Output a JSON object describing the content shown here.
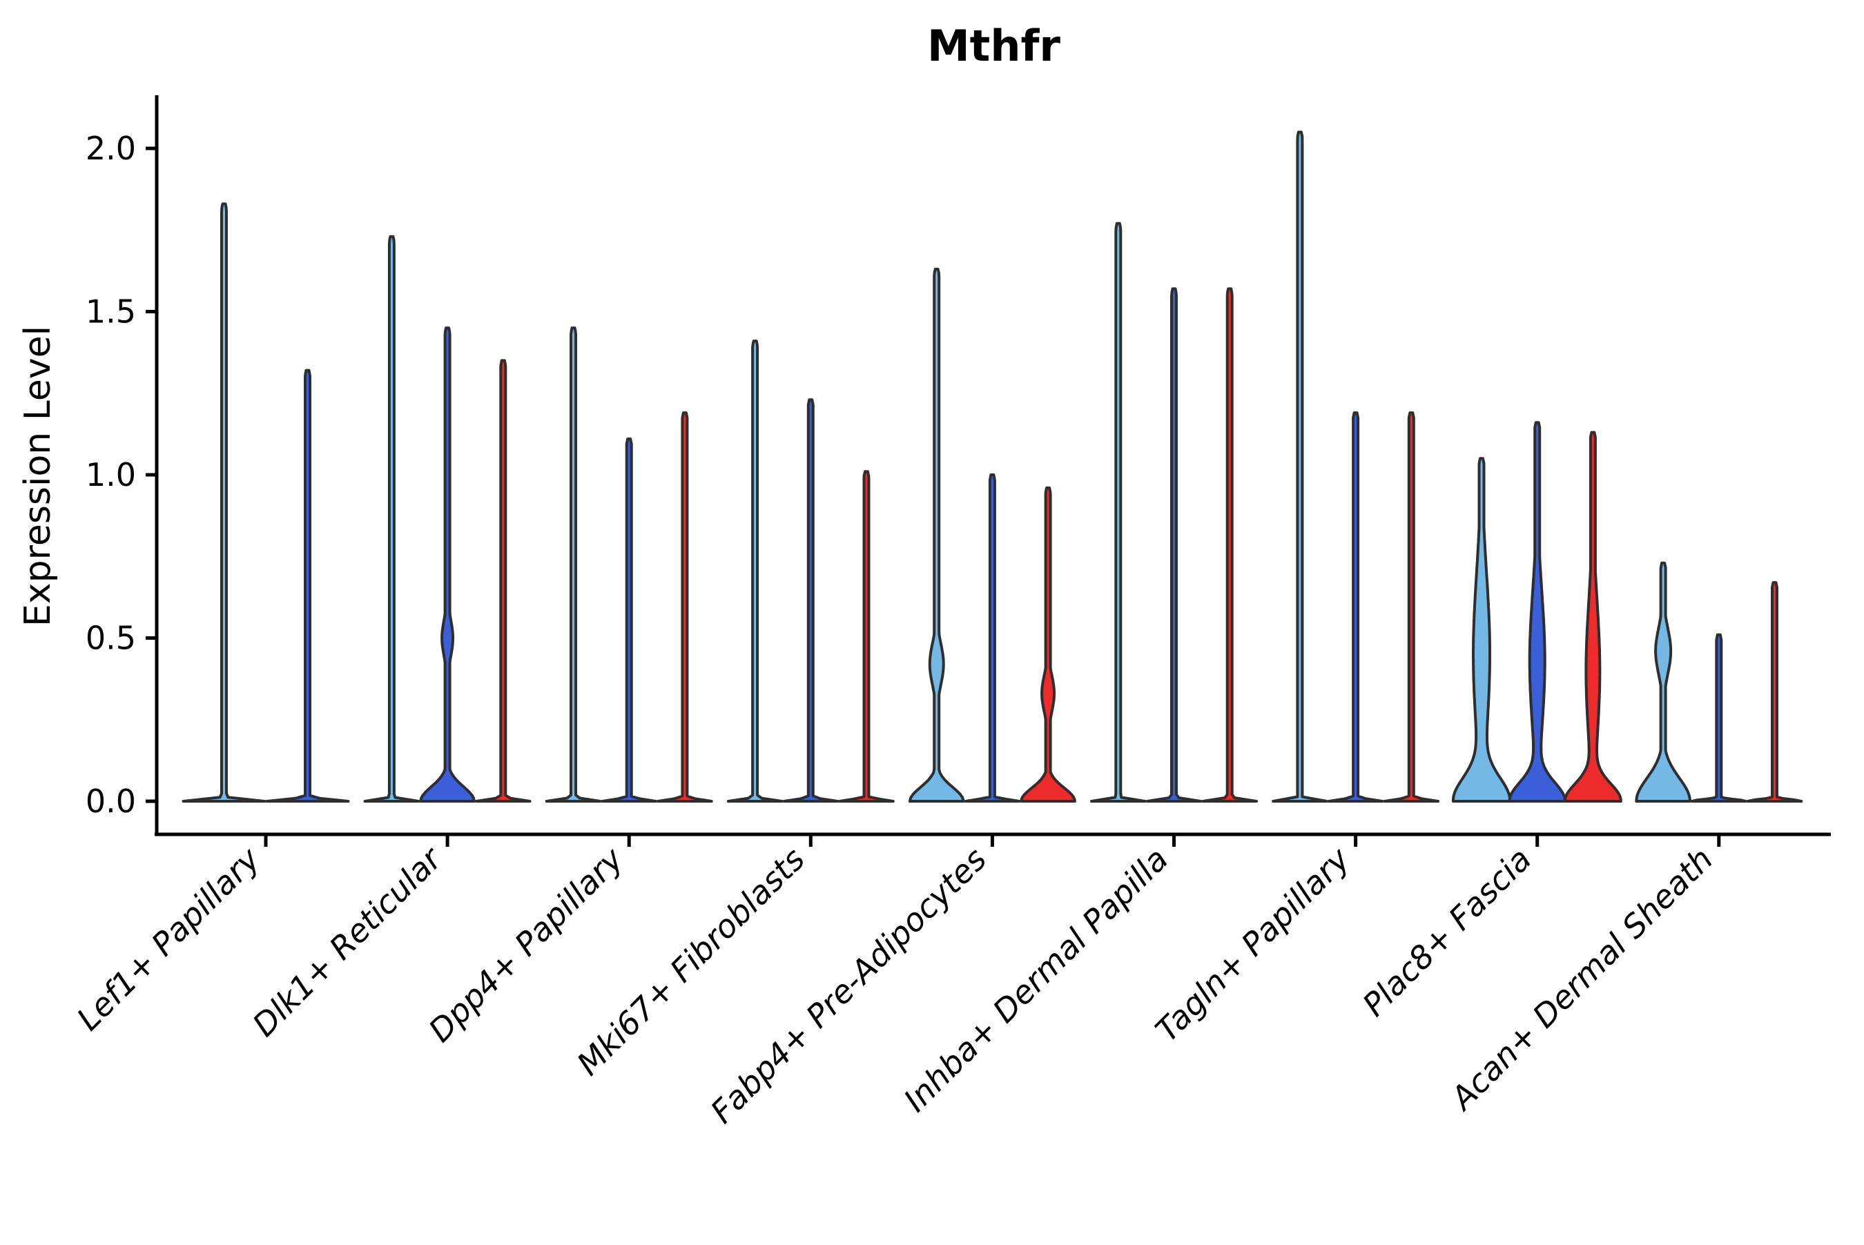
{
  "chart_data": {
    "type": "violin",
    "title": "Mthfr",
    "ylabel": "Expression Level",
    "xlabel": "",
    "grid": false,
    "legend": "none",
    "yticks": [
      0.0,
      0.5,
      1.0,
      1.5,
      2.0
    ],
    "ytick_labels": [
      "0.0",
      "0.5",
      "1.0",
      "1.5",
      "2.0"
    ],
    "ylim": [
      -0.1,
      2.16
    ],
    "split_palette": [
      "#74B9E6",
      "#3A5FD9",
      "#ED2B2A"
    ],
    "outline_color": "#2E2E2E",
    "axis_color": "#000000",
    "categories": [
      "Lef1+ Papillary",
      "Dlk1+ Reticular",
      "Dpp4+ Papillary",
      "Mki67+ Fibroblasts",
      "Fabp4+ Pre-Adipocytes",
      "Inhba+ Dermal Papilla",
      "Tagln+ Papillary",
      "Plac8+ Fascia",
      "Acan+ Dermal Sheath"
    ],
    "violins": [
      [
        {
          "color": 0,
          "max": 1.83
        },
        {
          "color": 1,
          "max": 1.32
        }
      ],
      [
        {
          "color": 0,
          "max": 1.73
        },
        {
          "color": 1,
          "max": 1.45,
          "base": 0.125,
          "bulge": {
            "c": 0.5,
            "s": 0.08,
            "w": 8
          }
        },
        {
          "color": 2,
          "max": 1.35
        }
      ],
      [
        {
          "color": 0,
          "max": 1.45
        },
        {
          "color": 1,
          "max": 1.11
        },
        {
          "color": 2,
          "max": 1.19
        }
      ],
      [
        {
          "color": 0,
          "max": 1.41
        },
        {
          "color": 1,
          "max": 1.23
        },
        {
          "color": 2,
          "max": 1.01
        }
      ],
      [
        {
          "color": 0,
          "max": 1.63,
          "base": 0.12,
          "bulge": {
            "c": 0.42,
            "s": 0.09,
            "w": 10
          }
        },
        {
          "color": 1,
          "max": 1.0
        },
        {
          "color": 2,
          "max": 0.96,
          "base": 0.115,
          "bulge": {
            "c": 0.33,
            "s": 0.08,
            "w": 9
          }
        }
      ],
      [
        {
          "color": 0,
          "max": 1.77
        },
        {
          "color": 1,
          "max": 1.57
        },
        {
          "color": 2,
          "max": 1.57
        }
      ],
      [
        {
          "color": 0,
          "max": 2.05
        },
        {
          "color": 1,
          "max": 1.19
        },
        {
          "color": 2,
          "max": 1.19
        }
      ],
      [
        {
          "color": 0,
          "max": 1.05,
          "base": 0.2,
          "bulge": {
            "c": 0.45,
            "s": 0.35,
            "w": 12
          }
        },
        {
          "color": 1,
          "max": 1.16,
          "base": 0.16,
          "bulge": {
            "c": 0.43,
            "s": 0.3,
            "w": 11
          }
        },
        {
          "color": 2,
          "max": 1.13,
          "base": 0.15,
          "bulge": {
            "c": 0.4,
            "s": 0.3,
            "w": 10
          }
        }
      ],
      [
        {
          "color": 0,
          "max": 0.73,
          "base": 0.2,
          "bulge": {
            "c": 0.46,
            "s": 0.1,
            "w": 11
          }
        },
        {
          "color": 1,
          "max": 0.51
        },
        {
          "color": 2,
          "max": 0.67
        }
      ]
    ]
  }
}
